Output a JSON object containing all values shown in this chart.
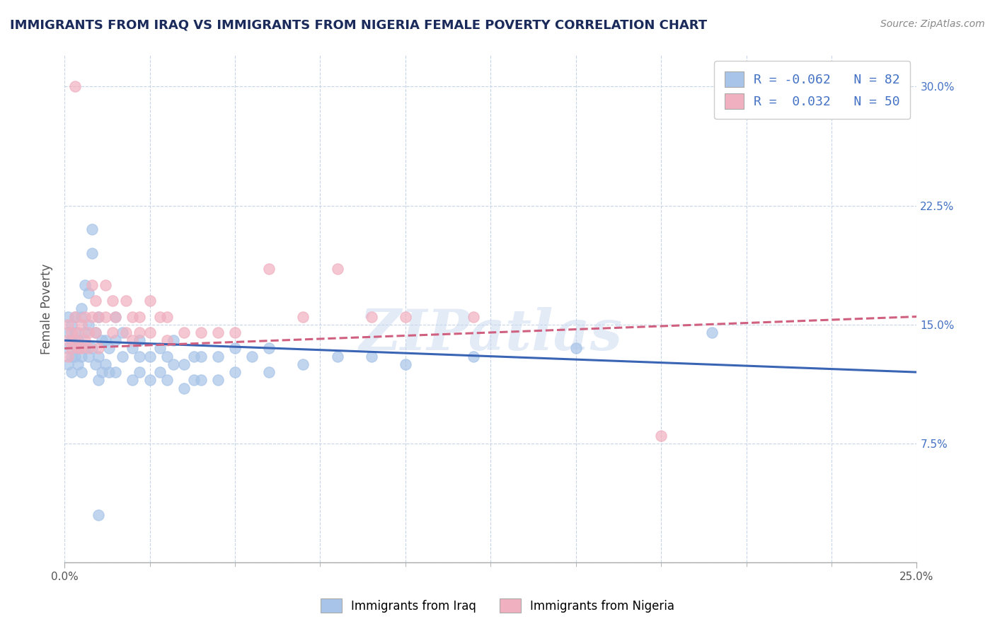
{
  "title": "IMMIGRANTS FROM IRAQ VS IMMIGRANTS FROM NIGERIA FEMALE POVERTY CORRELATION CHART",
  "source": "Source: ZipAtlas.com",
  "ylabel": "Female Poverty",
  "xlim": [
    0.0,
    0.25
  ],
  "ylim": [
    0.0,
    0.32
  ],
  "xticks_major": [
    0.0,
    0.25
  ],
  "xtick_major_labels": [
    "0.0%",
    "25.0%"
  ],
  "xticks_minor": [
    0.025,
    0.05,
    0.075,
    0.1,
    0.125,
    0.15,
    0.175,
    0.2,
    0.225
  ],
  "yticks": [
    0.0,
    0.075,
    0.15,
    0.225,
    0.3
  ],
  "ytick_labels": [
    "",
    "7.5%",
    "15.0%",
    "22.5%",
    "30.0%"
  ],
  "legend_R_iraq": "-0.062",
  "legend_N_iraq": "82",
  "legend_R_nigeria": "0.032",
  "legend_N_nigeria": "50",
  "legend_label_iraq": "Immigrants from Iraq",
  "legend_label_nigeria": "Immigrants from Nigeria",
  "iraq_color": "#a8c4e8",
  "nigeria_color": "#f0b0c0",
  "iraq_line_color": "#3a65b5",
  "nigeria_line_color": "#d06080",
  "watermark": "ZIPatlas",
  "background_color": "#ffffff",
  "grid_color": "#c8d4e8",
  "title_color": "#1a2a5a",
  "source_color": "#888888",
  "iraq_scatter": [
    [
      0.001,
      0.145
    ],
    [
      0.001,
      0.135
    ],
    [
      0.001,
      0.155
    ],
    [
      0.001,
      0.125
    ],
    [
      0.002,
      0.14
    ],
    [
      0.002,
      0.13
    ],
    [
      0.002,
      0.15
    ],
    [
      0.002,
      0.12
    ],
    [
      0.003,
      0.155
    ],
    [
      0.003,
      0.13
    ],
    [
      0.003,
      0.145
    ],
    [
      0.004,
      0.14
    ],
    [
      0.004,
      0.135
    ],
    [
      0.004,
      0.125
    ],
    [
      0.005,
      0.16
    ],
    [
      0.005,
      0.13
    ],
    [
      0.005,
      0.155
    ],
    [
      0.005,
      0.12
    ],
    [
      0.006,
      0.175
    ],
    [
      0.006,
      0.145
    ],
    [
      0.006,
      0.135
    ],
    [
      0.007,
      0.17
    ],
    [
      0.007,
      0.15
    ],
    [
      0.007,
      0.13
    ],
    [
      0.008,
      0.21
    ],
    [
      0.008,
      0.195
    ],
    [
      0.008,
      0.135
    ],
    [
      0.009,
      0.145
    ],
    [
      0.009,
      0.125
    ],
    [
      0.01,
      0.155
    ],
    [
      0.01,
      0.13
    ],
    [
      0.01,
      0.115
    ],
    [
      0.011,
      0.14
    ],
    [
      0.011,
      0.12
    ],
    [
      0.012,
      0.14
    ],
    [
      0.012,
      0.125
    ],
    [
      0.013,
      0.135
    ],
    [
      0.013,
      0.12
    ],
    [
      0.015,
      0.155
    ],
    [
      0.015,
      0.14
    ],
    [
      0.015,
      0.12
    ],
    [
      0.017,
      0.145
    ],
    [
      0.017,
      0.13
    ],
    [
      0.02,
      0.135
    ],
    [
      0.02,
      0.115
    ],
    [
      0.022,
      0.14
    ],
    [
      0.022,
      0.13
    ],
    [
      0.022,
      0.12
    ],
    [
      0.025,
      0.13
    ],
    [
      0.025,
      0.115
    ],
    [
      0.028,
      0.135
    ],
    [
      0.028,
      0.12
    ],
    [
      0.03,
      0.13
    ],
    [
      0.03,
      0.115
    ],
    [
      0.032,
      0.14
    ],
    [
      0.032,
      0.125
    ],
    [
      0.035,
      0.11
    ],
    [
      0.035,
      0.125
    ],
    [
      0.038,
      0.115
    ],
    [
      0.038,
      0.13
    ],
    [
      0.04,
      0.115
    ],
    [
      0.04,
      0.13
    ],
    [
      0.045,
      0.13
    ],
    [
      0.045,
      0.115
    ],
    [
      0.05,
      0.135
    ],
    [
      0.05,
      0.12
    ],
    [
      0.055,
      0.13
    ],
    [
      0.06,
      0.135
    ],
    [
      0.06,
      0.12
    ],
    [
      0.07,
      0.125
    ],
    [
      0.08,
      0.13
    ],
    [
      0.09,
      0.13
    ],
    [
      0.1,
      0.125
    ],
    [
      0.12,
      0.13
    ],
    [
      0.15,
      0.135
    ],
    [
      0.19,
      0.145
    ],
    [
      0.01,
      0.03
    ]
  ],
  "nigeria_scatter": [
    [
      0.001,
      0.14
    ],
    [
      0.001,
      0.13
    ],
    [
      0.001,
      0.15
    ],
    [
      0.002,
      0.145
    ],
    [
      0.002,
      0.135
    ],
    [
      0.003,
      0.155
    ],
    [
      0.003,
      0.14
    ],
    [
      0.004,
      0.145
    ],
    [
      0.004,
      0.135
    ],
    [
      0.005,
      0.15
    ],
    [
      0.005,
      0.135
    ],
    [
      0.006,
      0.155
    ],
    [
      0.006,
      0.14
    ],
    [
      0.007,
      0.145
    ],
    [
      0.007,
      0.135
    ],
    [
      0.008,
      0.175
    ],
    [
      0.008,
      0.155
    ],
    [
      0.009,
      0.165
    ],
    [
      0.009,
      0.145
    ],
    [
      0.01,
      0.155
    ],
    [
      0.01,
      0.135
    ],
    [
      0.012,
      0.175
    ],
    [
      0.012,
      0.155
    ],
    [
      0.014,
      0.165
    ],
    [
      0.014,
      0.145
    ],
    [
      0.015,
      0.155
    ],
    [
      0.018,
      0.165
    ],
    [
      0.018,
      0.145
    ],
    [
      0.02,
      0.155
    ],
    [
      0.02,
      0.14
    ],
    [
      0.022,
      0.155
    ],
    [
      0.022,
      0.145
    ],
    [
      0.025,
      0.165
    ],
    [
      0.025,
      0.145
    ],
    [
      0.028,
      0.155
    ],
    [
      0.03,
      0.155
    ],
    [
      0.03,
      0.14
    ],
    [
      0.035,
      0.145
    ],
    [
      0.04,
      0.145
    ],
    [
      0.045,
      0.145
    ],
    [
      0.05,
      0.145
    ],
    [
      0.06,
      0.185
    ],
    [
      0.07,
      0.155
    ],
    [
      0.08,
      0.185
    ],
    [
      0.09,
      0.155
    ],
    [
      0.1,
      0.155
    ],
    [
      0.12,
      0.155
    ],
    [
      0.175,
      0.08
    ],
    [
      0.003,
      0.3
    ]
  ],
  "iraq_trendline": [
    0.0,
    0.14,
    0.25,
    0.12
  ],
  "nigeria_trendline": [
    0.0,
    0.135,
    0.25,
    0.155
  ]
}
